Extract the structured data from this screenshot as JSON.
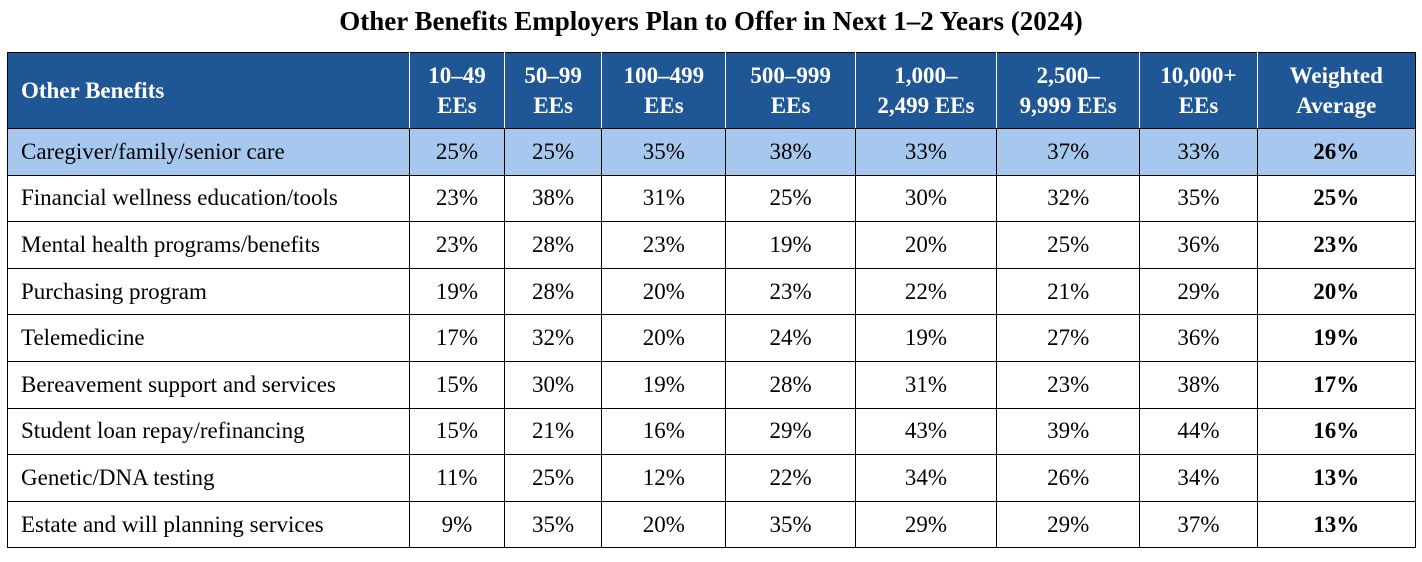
{
  "title": "Other Benefits Employers Plan to Offer in Next 1–2 Years (2024)",
  "headers": {
    "benefit": "Other Benefits",
    "columns": [
      [
        "10–49",
        "EEs"
      ],
      [
        "50–99",
        "EEs"
      ],
      [
        "100–499",
        "EEs"
      ],
      [
        "500–999",
        "EEs"
      ],
      [
        "1,000–",
        "2,499 EEs"
      ],
      [
        "2,500–",
        "9,999 EEs"
      ],
      [
        "10,000+",
        "EEs"
      ],
      [
        "Weighted",
        "Average"
      ]
    ]
  },
  "rows": [
    {
      "label": "Caregiver/family/senior care",
      "values": [
        "25%",
        "25%",
        "35%",
        "38%",
        "33%",
        "37%",
        "33%",
        "26%"
      ],
      "highlight": true
    },
    {
      "label": "Financial wellness education/tools",
      "values": [
        "23%",
        "38%",
        "31%",
        "25%",
        "30%",
        "32%",
        "35%",
        "25%"
      ]
    },
    {
      "label": "Mental health programs/benefits",
      "values": [
        "23%",
        "28%",
        "23%",
        "19%",
        "20%",
        "25%",
        "36%",
        "23%"
      ]
    },
    {
      "label": "Purchasing program",
      "values": [
        "19%",
        "28%",
        "20%",
        "23%",
        "22%",
        "21%",
        "29%",
        "20%"
      ]
    },
    {
      "label": "Telemedicine",
      "values": [
        "17%",
        "32%",
        "20%",
        "24%",
        "19%",
        "27%",
        "36%",
        "19%"
      ]
    },
    {
      "label": "Bereavement support and services",
      "values": [
        "15%",
        "30%",
        "19%",
        "28%",
        "31%",
        "23%",
        "38%",
        "17%"
      ]
    },
    {
      "label": "Student loan repay/refinancing",
      "values": [
        "15%",
        "21%",
        "16%",
        "29%",
        "43%",
        "39%",
        "44%",
        "16%"
      ]
    },
    {
      "label": "Genetic/DNA testing",
      "values": [
        "11%",
        "25%",
        "12%",
        "22%",
        "34%",
        "26%",
        "34%",
        "13%"
      ]
    },
    {
      "label": "Estate and will planning services",
      "values": [
        "9%",
        "35%",
        "20%",
        "35%",
        "29%",
        "29%",
        "37%",
        "13%"
      ]
    }
  ],
  "colors": {
    "header_bg": "#1f5696",
    "highlight_bg": "#a6c8ef"
  }
}
